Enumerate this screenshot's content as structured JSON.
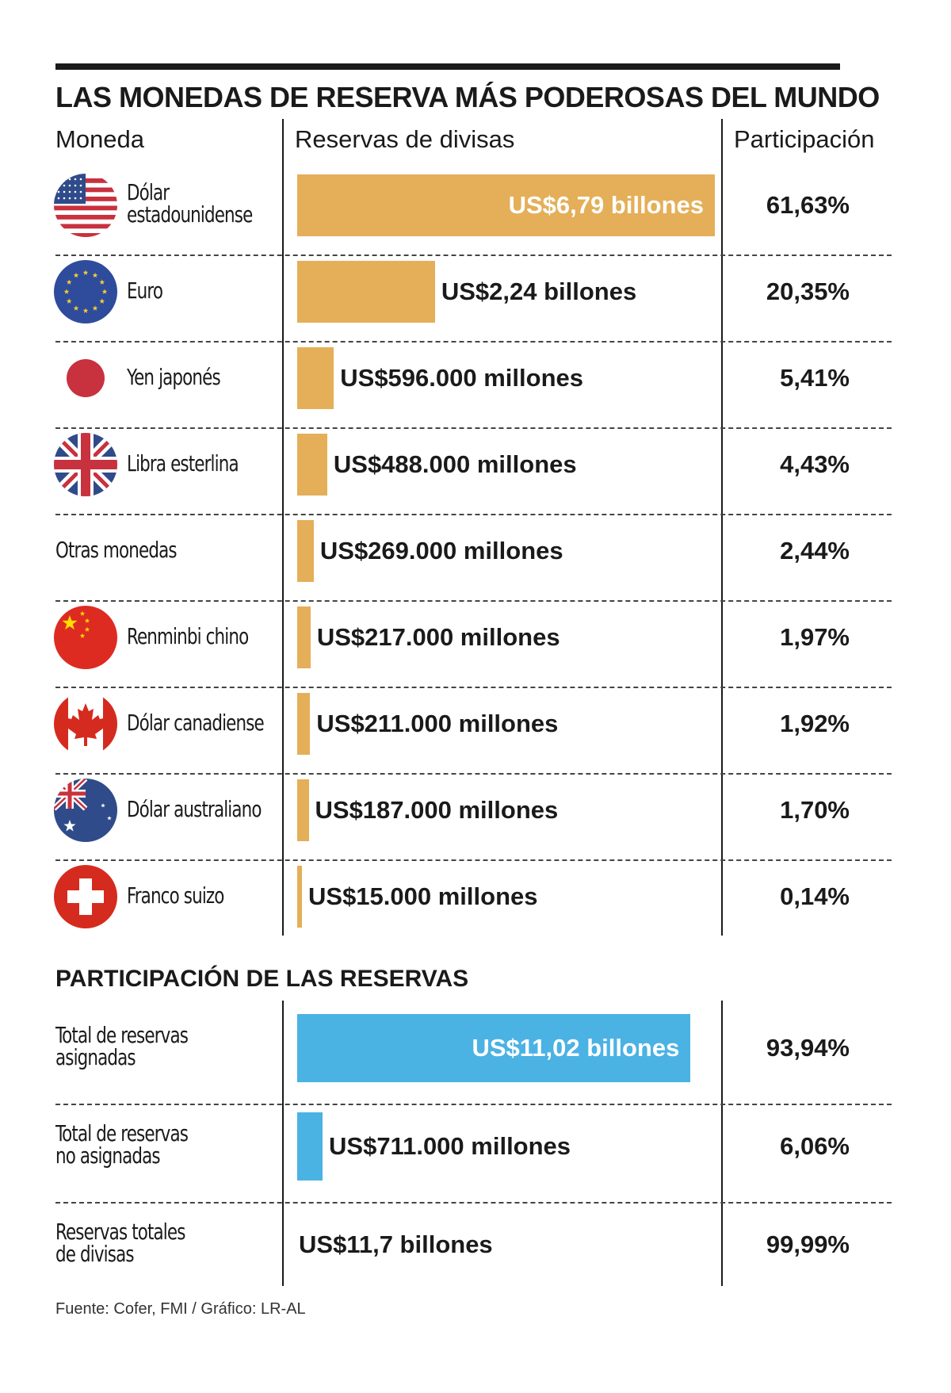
{
  "title": "LAS MONEDAS DE RESERVA MÁS PODEROSAS DEL MUNDO",
  "headers": {
    "currency": "Moneda",
    "reserves": "Reservas de divisas",
    "share": "Participación"
  },
  "colors": {
    "gold": "#E4AF58",
    "blue": "#4BB2E4",
    "text": "#1a1a1a"
  },
  "chart_data": [
    {
      "type": "bar",
      "title": "LAS MONEDAS DE RESERVA MÁS PODEROSAS DEL MUNDO",
      "unit": "billones de US$",
      "max": 6.79,
      "categories": [
        "Dólar estadounidense",
        "Euro",
        "Yen japonés",
        "Libra esterlina",
        "Otras monedas",
        "Renminbi chino",
        "Dólar canadiense",
        "Dólar australiano",
        "Franco suizo"
      ],
      "rows": [
        {
          "icon": "us-flag-icon",
          "label_lines": [
            "Dólar",
            "estadounidense"
          ],
          "value": 6.79,
          "value_label": "US$6,79 billones",
          "share": "61,63%"
        },
        {
          "icon": "eu-flag-icon",
          "label_lines": [
            "Euro"
          ],
          "value": 2.24,
          "value_label": "US$2,24 billones",
          "share": "20,35%"
        },
        {
          "icon": "japan-flag-icon",
          "label_lines": [
            "Yen japonés"
          ],
          "value": 0.596,
          "value_label": "US$596.000 millones",
          "share": "5,41%"
        },
        {
          "icon": "uk-flag-icon",
          "label_lines": [
            "Libra esterlina"
          ],
          "value": 0.488,
          "value_label": "US$488.000 millones",
          "share": "4,43%"
        },
        {
          "icon": null,
          "label_lines": [
            "Otras monedas"
          ],
          "value": 0.269,
          "value_label": "US$269.000 millones",
          "share": "2,44%"
        },
        {
          "icon": "china-flag-icon",
          "label_lines": [
            "Renminbi chino"
          ],
          "value": 0.217,
          "value_label": "US$217.000 millones",
          "share": "1,97%"
        },
        {
          "icon": "canada-flag-icon",
          "label_lines": [
            "Dólar canadiense"
          ],
          "value": 0.211,
          "value_label": "US$211.000 millones",
          "share": "1,92%"
        },
        {
          "icon": "australia-flag-icon",
          "label_lines": [
            "Dólar australiano"
          ],
          "value": 0.187,
          "value_label": "US$187.000 millones",
          "share": "1,70%"
        },
        {
          "icon": "swiss-flag-icon",
          "label_lines": [
            "Franco suizo"
          ],
          "value": 0.015,
          "value_label": "US$15.000 millones",
          "share": "0,14%"
        }
      ]
    },
    {
      "type": "bar",
      "title": "PARTICIPACIÓN DE LAS RESERVAS",
      "unit": "billones de US$",
      "max": 11.7,
      "categories": [
        "Total de reservas asignadas",
        "Total de reservas no asignadas",
        "Reservas totales de divisas"
      ],
      "rows": [
        {
          "label_lines": [
            "Total de reservas",
            "asignadas"
          ],
          "value": 11.02,
          "value_label": "US$11,02 billones",
          "share": "93,94%",
          "has_bar": true
        },
        {
          "label_lines": [
            "Total de reservas",
            "no asignadas"
          ],
          "value": 0.711,
          "value_label": "US$711.000 millones",
          "share": "6,06%",
          "has_bar": true
        },
        {
          "label_lines": [
            "Reservas totales",
            "de divisas"
          ],
          "value": 11.7,
          "value_label": "US$11,7 billones",
          "share": "99,99%",
          "has_bar": false
        }
      ]
    }
  ],
  "section2_title": "PARTICIPACIÓN DE LAS RESERVAS",
  "source": "Fuente: Cofer, FMI / Gráfico: LR-AL"
}
